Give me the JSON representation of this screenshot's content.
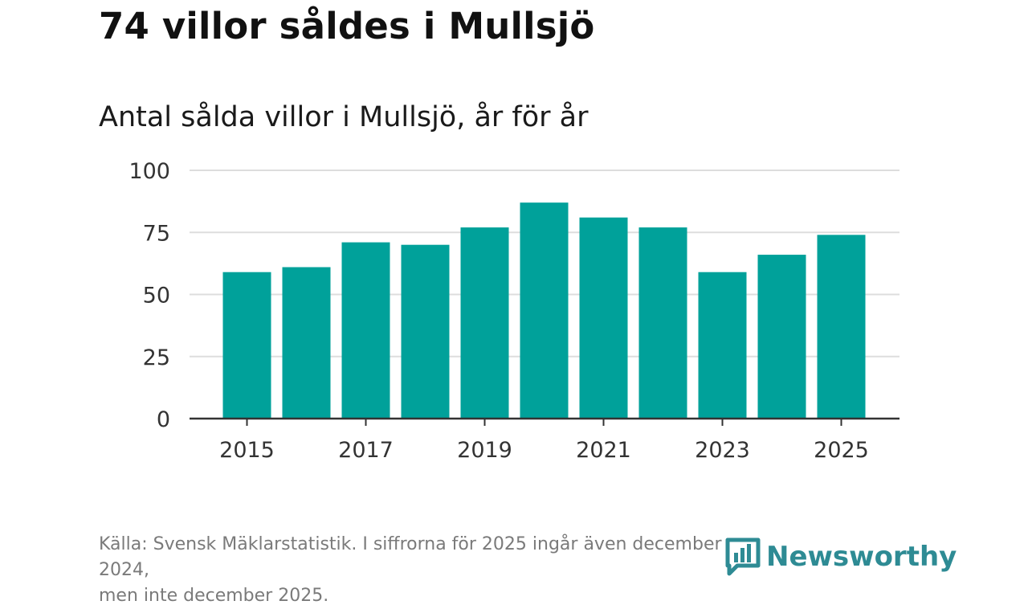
{
  "headline": "74 villor såldes i Mullsjö",
  "chart_data": {
    "type": "bar",
    "title": "Antal sålda villor i Mullsjö, år för år",
    "categories": [
      "2015",
      "2016",
      "2017",
      "2018",
      "2019",
      "2020",
      "2021",
      "2022",
      "2023",
      "2024",
      "2025"
    ],
    "values": [
      59,
      61,
      71,
      70,
      77,
      87,
      81,
      77,
      59,
      66,
      74
    ],
    "xticks": [
      "2015",
      "2017",
      "2019",
      "2021",
      "2023",
      "2025"
    ],
    "yticks": [
      "0",
      "25",
      "50",
      "75",
      "100"
    ],
    "ylim": [
      0,
      100
    ],
    "xlabel": "",
    "ylabel": "",
    "bar_color": "#00a19a"
  },
  "footnote": {
    "line1": "Källa: Svensk Mäklarstatistik. I siffrorna för 2025 ingår även december 2024,",
    "line2": "men inte december 2025."
  },
  "brand": {
    "name": "Newsworthy",
    "color": "#2e8b94"
  }
}
